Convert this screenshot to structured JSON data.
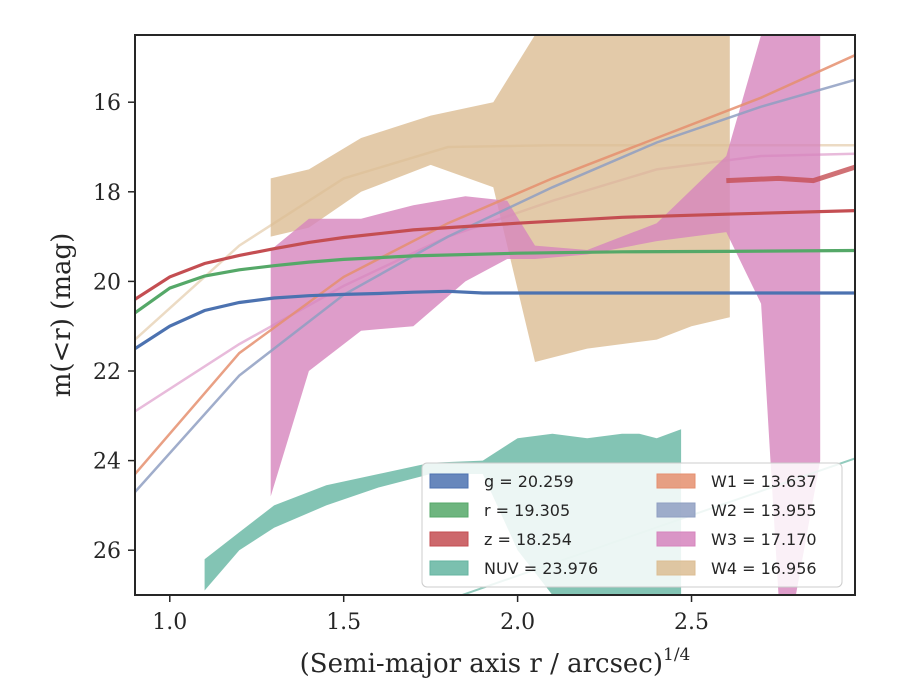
{
  "chart_data": {
    "type": "area",
    "title": "",
    "xlabel": "(Semi-major axis r / arcsec)",
    "xlabel_exp": "1/4",
    "ylabel": "m(<r) (mag)",
    "xlim": [
      0.9,
      2.97
    ],
    "ylim": [
      27.0,
      14.5
    ],
    "y_inverted": true,
    "x_ticks": [
      "1.0",
      "1.5",
      "2.0",
      "2.5"
    ],
    "y_ticks": [
      "16",
      "18",
      "20",
      "22",
      "24",
      "26"
    ],
    "grid": false,
    "legend_position": "lower-right",
    "series": [
      {
        "name": "g",
        "legend": "g = 20.259",
        "color": "#4c72b0",
        "kind": "line",
        "x": [
          0.9,
          1.0,
          1.1,
          1.2,
          1.3,
          1.4,
          1.5,
          1.6,
          1.7,
          1.8,
          1.9,
          2.0,
          2.2,
          2.5,
          2.97
        ],
        "y": [
          21.5,
          21.0,
          20.65,
          20.47,
          20.37,
          20.32,
          20.29,
          20.27,
          20.24,
          20.22,
          20.26,
          20.26,
          20.26,
          20.26,
          20.26
        ]
      },
      {
        "name": "r",
        "legend": "r = 19.305",
        "color": "#55a868",
        "kind": "line",
        "x": [
          0.9,
          1.0,
          1.1,
          1.2,
          1.3,
          1.4,
          1.5,
          1.7,
          2.0,
          2.3,
          2.6,
          2.97
        ],
        "y": [
          20.7,
          20.15,
          19.88,
          19.74,
          19.65,
          19.57,
          19.51,
          19.43,
          19.37,
          19.34,
          19.33,
          19.31
        ]
      },
      {
        "name": "z",
        "legend": "z = 18.254",
        "color": "#c44e52",
        "kind": "line",
        "x": [
          0.9,
          1.0,
          1.1,
          1.2,
          1.3,
          1.4,
          1.5,
          1.7,
          2.0,
          2.3,
          2.6,
          2.97
        ],
        "y": [
          20.4,
          19.9,
          19.6,
          19.42,
          19.27,
          19.13,
          19.02,
          18.85,
          18.7,
          18.57,
          18.5,
          18.42
        ]
      },
      {
        "name": "NUV",
        "legend": "NUV = 23.976",
        "color": "#64b5a1",
        "kind": "band",
        "x": [
          1.1,
          1.2,
          1.3,
          1.45,
          1.6,
          1.75,
          1.9,
          2.0,
          2.1,
          2.2,
          2.3,
          2.35,
          2.4,
          2.47
        ],
        "y_upper": [
          26.2,
          25.6,
          25.0,
          24.55,
          24.3,
          24.05,
          24.0,
          23.5,
          23.4,
          23.5,
          23.4,
          23.4,
          23.5,
          23.3
        ],
        "y_lower": [
          26.9,
          26.0,
          25.5,
          25.0,
          24.6,
          24.3,
          24.3,
          26.0,
          27.0,
          27.0,
          27.0,
          27.0,
          27.0,
          27.0
        ],
        "tail": {
          "x": [
            1.1,
            2.97
          ],
          "y": [
            29.0,
            23.95
          ]
        }
      },
      {
        "name": "W1",
        "legend": "W1 = 13.637",
        "color": "#e58f6f",
        "kind": "line",
        "x": [
          0.9,
          1.2,
          1.5,
          1.8,
          2.1,
          2.4,
          2.7,
          2.97
        ],
        "y": [
          24.3,
          21.6,
          19.9,
          18.7,
          17.7,
          16.8,
          15.9,
          14.95
        ]
      },
      {
        "name": "W2",
        "legend": "W2 = 13.955",
        "color": "#8f9fc2",
        "kind": "line",
        "x": [
          0.9,
          1.2,
          1.5,
          1.8,
          2.1,
          2.4,
          2.7,
          2.97
        ],
        "y": [
          24.7,
          22.1,
          20.3,
          19.0,
          17.9,
          16.9,
          16.1,
          15.5
        ]
      },
      {
        "name": "W3",
        "legend": "W3 = 17.170",
        "color": "#d684bd",
        "kind": "band",
        "x": [
          1.29,
          1.4,
          1.55,
          1.7,
          1.85,
          1.97,
          2.05,
          2.2,
          2.4,
          2.6,
          2.7,
          2.75,
          2.8,
          2.87
        ],
        "y_upper": [
          19.3,
          18.6,
          18.6,
          18.3,
          18.1,
          18.2,
          19.2,
          19.3,
          18.7,
          17.2,
          14.5,
          14.5,
          14.5,
          14.5
        ],
        "y_lower": [
          24.8,
          22.0,
          21.1,
          21.0,
          20.0,
          19.5,
          19.5,
          19.4,
          19.1,
          18.9,
          20.5,
          27.0,
          27.0,
          24.0
        ],
        "line": {
          "x": [
            0.9,
            1.2,
            1.5,
            1.8,
            2.1,
            2.4,
            2.7,
            2.97
          ],
          "y": [
            22.9,
            21.4,
            20.1,
            19.0,
            18.2,
            17.5,
            17.2,
            17.15
          ]
        }
      },
      {
        "name": "W4",
        "legend": "W4 = 16.956",
        "color": "#dcbd93",
        "kind": "band",
        "x": [
          1.29,
          1.4,
          1.55,
          1.75,
          1.93,
          2.05,
          2.2,
          2.4,
          2.5,
          2.61
        ],
        "y_upper": [
          17.7,
          17.5,
          16.8,
          16.3,
          16.0,
          14.5,
          14.5,
          14.5,
          14.5,
          14.5
        ],
        "y_lower": [
          19.0,
          18.8,
          18.0,
          17.4,
          17.9,
          21.8,
          21.5,
          21.3,
          21.0,
          20.8
        ],
        "line": {
          "x": [
            0.9,
            1.2,
            1.5,
            1.8,
            2.1,
            2.4,
            2.7,
            2.97
          ],
          "y": [
            21.3,
            19.2,
            17.7,
            17.0,
            16.96,
            16.96,
            16.96,
            16.96
          ]
        }
      }
    ]
  }
}
